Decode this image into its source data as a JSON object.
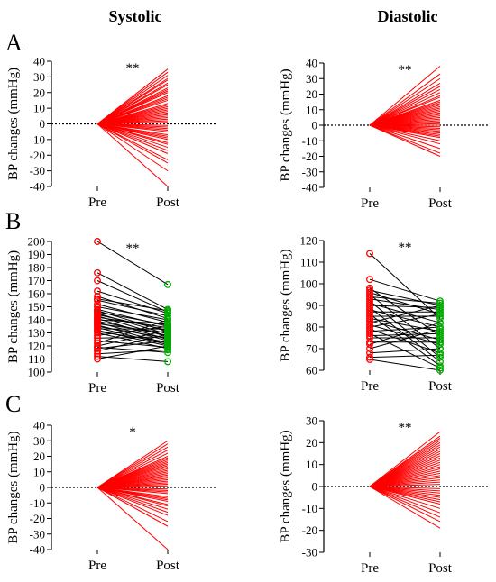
{
  "column_titles": [
    "Systolic",
    "Diastolic"
  ],
  "row_labels": [
    "A",
    "B",
    "C"
  ],
  "chart_data": [
    {
      "id": "A-systolic",
      "type": "line",
      "row": "A",
      "column": "Systolic",
      "categories": [
        "Pre",
        "Post"
      ],
      "ylabel": "BP changes (mmHg)",
      "ylim": [
        -40,
        40
      ],
      "yticks": [
        -40,
        -30,
        -20,
        -10,
        0,
        10,
        20,
        30,
        40
      ],
      "reference_line": 0,
      "annotation": "**",
      "line_color": "#ff0000",
      "pre_values": [],
      "post_values": [
        35,
        33,
        31,
        29,
        28,
        26,
        25,
        23,
        22,
        21,
        20,
        18,
        17,
        16,
        15,
        13,
        12,
        11,
        10,
        9,
        8,
        7,
        6,
        5,
        4,
        3,
        2,
        1,
        -1,
        -2,
        -3,
        -4,
        -5,
        -7,
        -8,
        -9,
        -10,
        -12,
        -13,
        -15,
        -17,
        -19,
        -23,
        -25,
        -30,
        -40
      ]
    },
    {
      "id": "A-diastolic",
      "type": "line",
      "row": "A",
      "column": "Diastolic",
      "categories": [
        "Pre",
        "Post"
      ],
      "ylabel": "BP changes (mmHg)",
      "ylim": [
        -40,
        40
      ],
      "yticks": [
        -40,
        -30,
        -20,
        -10,
        0,
        10,
        20,
        30,
        40
      ],
      "reference_line": 0,
      "annotation": "**",
      "line_color": "#ff0000",
      "pre_values": [],
      "post_values": [
        38,
        33,
        30,
        27,
        25,
        23,
        21,
        19,
        18,
        16,
        15,
        14,
        13,
        12,
        11,
        10,
        9,
        8,
        7,
        6,
        5,
        4,
        3,
        2,
        1,
        0,
        -1,
        -2,
        -3,
        -4,
        -5,
        -6,
        -7,
        -8,
        -10,
        -12,
        -15,
        -18,
        -20
      ]
    },
    {
      "id": "B-systolic",
      "type": "line",
      "row": "B",
      "column": "Systolic",
      "categories": [
        "Pre",
        "Post"
      ],
      "ylabel": "BP changes (mmHg)",
      "ylim": [
        100,
        200
      ],
      "yticks": [
        100,
        110,
        120,
        130,
        140,
        150,
        160,
        170,
        180,
        190,
        200
      ],
      "annotation": "**",
      "line_color": "#000000",
      "pre_marker_color": "#ff0000",
      "post_marker_color": "#00aa00",
      "pre_values": [
        200,
        176,
        170,
        162,
        158,
        156,
        155,
        152,
        150,
        148,
        147,
        146,
        145,
        144,
        143,
        142,
        141,
        140,
        139,
        138,
        137,
        136,
        135,
        134,
        133,
        132,
        131,
        130,
        128,
        126,
        124,
        122,
        120,
        119,
        118,
        116,
        114,
        112,
        110
      ],
      "post_values": [
        167,
        148,
        146,
        145,
        141,
        147,
        143,
        138,
        140,
        135,
        131,
        136,
        129,
        132,
        127,
        134,
        125,
        137,
        128,
        124,
        130,
        122,
        126,
        121,
        133,
        120,
        123,
        118,
        135,
        127,
        119,
        140,
        132,
        115,
        124,
        129,
        117,
        108,
        120
      ]
    },
    {
      "id": "B-diastolic",
      "type": "line",
      "row": "B",
      "column": "Diastolic",
      "categories": [
        "Pre",
        "Post"
      ],
      "ylabel": "BP changes (mmHg)",
      "ylim": [
        60,
        120
      ],
      "yticks": [
        60,
        70,
        80,
        90,
        100,
        110,
        120
      ],
      "annotation": "**",
      "line_color": "#000000",
      "pre_marker_color": "#ff0000",
      "post_marker_color": "#00aa00",
      "pre_values": [
        114,
        102,
        98,
        97,
        96,
        95,
        94,
        93,
        92,
        91,
        90,
        89,
        88,
        87,
        86,
        85,
        84,
        83,
        82,
        81,
        80,
        79,
        78,
        77,
        76,
        75,
        73,
        72,
        70,
        68,
        66,
        65
      ],
      "post_values": [
        84,
        92,
        76,
        90,
        86,
        70,
        91,
        88,
        66,
        82,
        89,
        64,
        80,
        87,
        62,
        85,
        78,
        74,
        90,
        72,
        86,
        68,
        80,
        61,
        77,
        75,
        73,
        82,
        79,
        70,
        67,
        60
      ]
    },
    {
      "id": "C-systolic",
      "type": "line",
      "row": "C",
      "column": "Systolic",
      "categories": [
        "Pre",
        "Post"
      ],
      "ylabel": "BP changes (mmHg)",
      "ylim": [
        -40,
        40
      ],
      "yticks": [
        -40,
        -30,
        -20,
        -10,
        0,
        10,
        20,
        30,
        40
      ],
      "reference_line": 0,
      "annotation": "*",
      "line_color": "#ff0000",
      "pre_values": [],
      "post_values": [
        30,
        28,
        26,
        24,
        22,
        20,
        19,
        18,
        17,
        16,
        15,
        14,
        13,
        12,
        11,
        10,
        9,
        8,
        7,
        6,
        5,
        4,
        3,
        2,
        1,
        -1,
        -2,
        -3,
        -4,
        -6,
        -7,
        -8,
        -9,
        -11,
        -12,
        -14,
        -16,
        -18,
        -22,
        -25,
        -40
      ]
    },
    {
      "id": "C-diastolic",
      "type": "line",
      "row": "C",
      "column": "Diastolic",
      "categories": [
        "Pre",
        "Post"
      ],
      "ylabel": "BP changes (mmHg)",
      "ylim": [
        -30,
        30
      ],
      "yticks": [
        -30,
        -20,
        -10,
        0,
        10,
        20,
        30
      ],
      "reference_line": 0,
      "annotation": "**",
      "line_color": "#ff0000",
      "pre_values": [],
      "post_values": [
        25,
        23,
        22,
        21,
        20,
        19,
        18,
        17,
        16,
        15,
        14,
        13,
        12,
        11,
        10,
        9,
        8,
        7,
        6,
        5,
        4,
        3,
        2,
        1,
        -1,
        -2,
        -3,
        -4,
        -5,
        -6,
        -7,
        -8,
        -10,
        -12,
        -14,
        -16,
        -19
      ]
    }
  ]
}
